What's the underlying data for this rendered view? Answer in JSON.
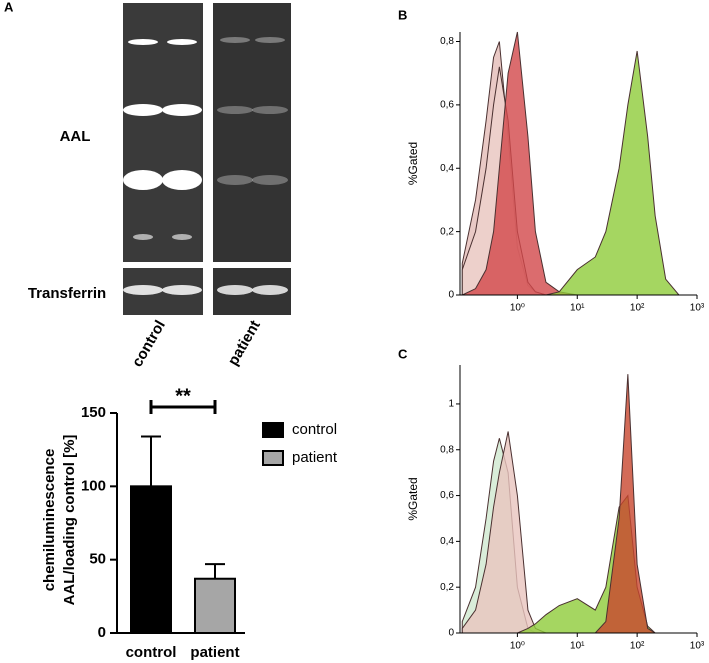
{
  "panel_labels": [
    "A",
    "B",
    "C"
  ],
  "blot": {
    "row_labels": [
      "AAL",
      "Transferrin"
    ],
    "lane_labels": [
      "control",
      "patient"
    ]
  },
  "chart_data": [
    {
      "type": "bar",
      "ylabel": [
        "chemiluminescence",
        "AAL/loading control [%]"
      ],
      "categories": [
        "control",
        "patient"
      ],
      "series": [
        {
          "name": "control",
          "color": "#000000",
          "values": [
            100,
            null
          ],
          "errors": [
            34,
            null
          ]
        },
        {
          "name": "patient",
          "color": "#a6a6a6",
          "values": [
            null,
            37
          ],
          "errors": [
            null,
            10
          ]
        }
      ],
      "ylim": [
        0,
        150
      ],
      "yticks": [
        0,
        50,
        100,
        150
      ],
      "annotation": "**"
    },
    {
      "type": "area",
      "ylabel": "%Gated",
      "x": [
        0.12,
        0.2,
        0.3,
        0.4,
        0.5,
        0.7,
        1,
        1.5,
        2,
        3,
        5,
        10,
        20,
        30,
        50,
        70,
        100,
        150,
        200,
        300,
        500
      ],
      "xscale": "log",
      "series": [
        {
          "color": "#e3bcb6",
          "values": [
            0.1,
            0.3,
            0.55,
            0.75,
            0.8,
            0.5,
            0.15,
            0.03,
            0.01,
            0,
            0,
            0,
            0,
            0,
            0,
            0,
            0,
            0,
            0,
            0,
            0
          ]
        },
        {
          "color": "#edd2cc",
          "values": [
            0.08,
            0.2,
            0.4,
            0.6,
            0.72,
            0.55,
            0.2,
            0.04,
            0.01,
            0,
            0,
            0,
            0,
            0,
            0,
            0,
            0,
            0,
            0,
            0,
            0
          ]
        },
        {
          "color": "#d2474a",
          "values": [
            0,
            0.02,
            0.08,
            0.2,
            0.4,
            0.7,
            0.83,
            0.5,
            0.2,
            0.04,
            0.01,
            0,
            0,
            0,
            0,
            0,
            0,
            0,
            0,
            0,
            0
          ]
        },
        {
          "color": "#8fcc3a",
          "values": [
            0,
            0,
            0,
            0,
            0,
            0,
            0,
            0,
            0,
            0,
            0.01,
            0.08,
            0.12,
            0.2,
            0.4,
            0.6,
            0.77,
            0.5,
            0.25,
            0.05,
            0
          ]
        }
      ],
      "xlim": [
        0.11,
        1000
      ],
      "xticks": [
        {
          "value": 1,
          "label": "10⁰"
        },
        {
          "value": 10,
          "label": "10¹"
        },
        {
          "value": 100,
          "label": "10²"
        },
        {
          "value": 1000,
          "label": "10³"
        }
      ],
      "ylim": [
        0,
        0.83
      ],
      "yticks": [
        0,
        {
          "value": 0.2,
          "label": "0,2"
        },
        {
          "value": 0.4,
          "label": "0,4"
        },
        {
          "value": 0.6,
          "label": "0,6"
        },
        {
          "value": 0.8,
          "label": "0,8"
        }
      ]
    },
    {
      "type": "area",
      "ylabel": "%Gated",
      "x": [
        0.12,
        0.2,
        0.3,
        0.4,
        0.5,
        0.7,
        1,
        1.5,
        2,
        3,
        5,
        10,
        20,
        30,
        50,
        70,
        100,
        150,
        200,
        300,
        500
      ],
      "xscale": "log",
      "series": [
        {
          "color": "#cfe8cf",
          "values": [
            0.05,
            0.2,
            0.5,
            0.75,
            0.85,
            0.7,
            0.2,
            0.02,
            0,
            0,
            0,
            0,
            0,
            0,
            0,
            0,
            0,
            0,
            0,
            0,
            0
          ]
        },
        {
          "color": "#e8c4be",
          "values": [
            0.02,
            0.1,
            0.3,
            0.55,
            0.7,
            0.88,
            0.6,
            0.1,
            0.02,
            0,
            0,
            0,
            0,
            0,
            0,
            0,
            0,
            0,
            0,
            0,
            0
          ]
        },
        {
          "color": "#8fcc3a",
          "values": [
            0,
            0,
            0,
            0,
            0,
            0,
            0,
            0.02,
            0.04,
            0.08,
            0.12,
            0.15,
            0.1,
            0.2,
            0.55,
            0.6,
            0.2,
            0.03,
            0,
            0,
            0
          ]
        },
        {
          "color": "#c8462e",
          "values": [
            0,
            0,
            0,
            0,
            0,
            0,
            0,
            0,
            0,
            0,
            0,
            0,
            0,
            0.05,
            0.5,
            1.13,
            0.3,
            0.02,
            0,
            0,
            0
          ]
        }
      ],
      "xlim": [
        0.11,
        1000
      ],
      "xticks": [
        {
          "value": 1,
          "label": "10⁰"
        },
        {
          "value": 10,
          "label": "10¹"
        },
        {
          "value": 100,
          "label": "10²"
        },
        {
          "value": 1000,
          "label": "10³"
        }
      ],
      "ylim": [
        0,
        1.17
      ],
      "yticks": [
        0,
        {
          "value": 0.2,
          "label": "0,2"
        },
        {
          "value": 0.4,
          "label": "0,4"
        },
        {
          "value": 0.6,
          "label": "0,6"
        },
        {
          "value": 0.8,
          "label": "0,8"
        },
        1
      ]
    }
  ]
}
